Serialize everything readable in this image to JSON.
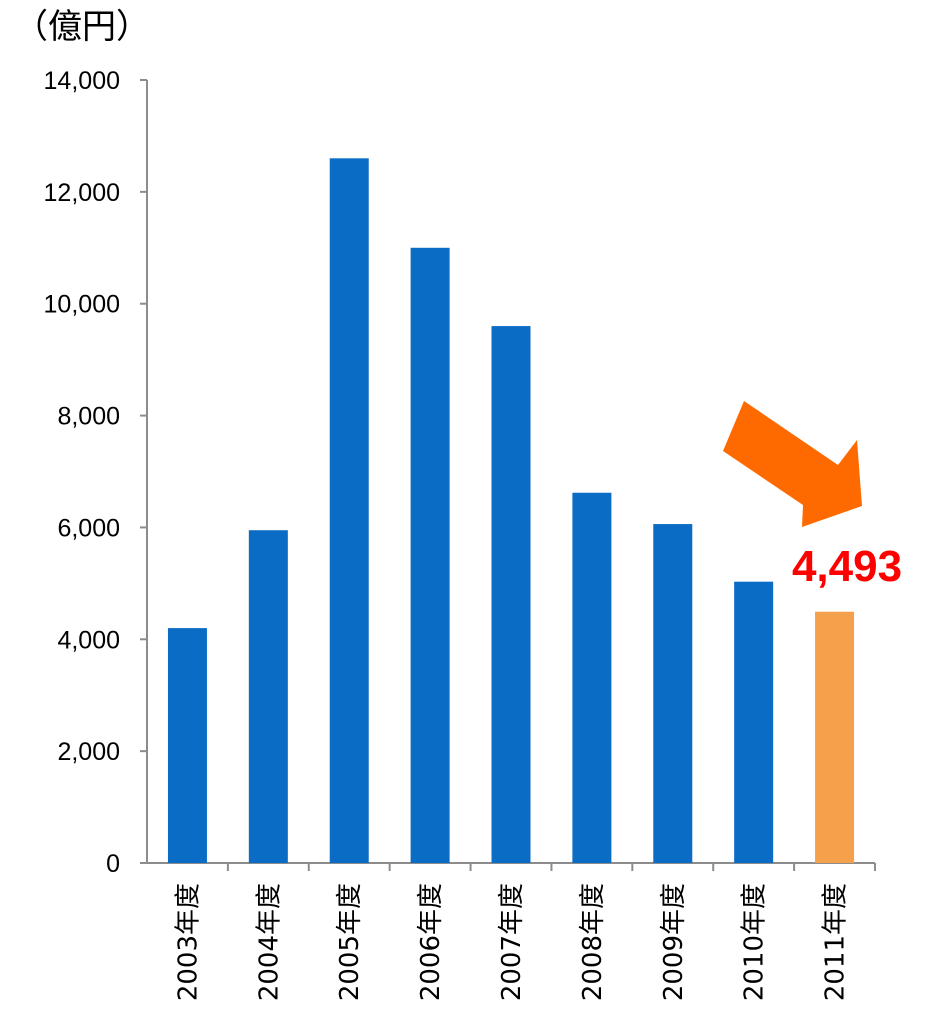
{
  "unit_label": "（億円）",
  "chart_data": {
    "type": "bar",
    "categories": [
      "2003年度",
      "2004年度",
      "2005年度",
      "2006年度",
      "2007年度",
      "2008年度",
      "2009年度",
      "2010年度",
      "2011年度"
    ],
    "values": [
      4200,
      5950,
      12600,
      11000,
      9600,
      6620,
      6060,
      5030,
      4493
    ],
    "ylim": [
      0,
      14000
    ],
    "yticks": [
      "0",
      "2,000",
      "4,000",
      "6,000",
      "8,000",
      "10,000",
      "12,000",
      "14,000"
    ],
    "grid": false,
    "bar_color": "#0a6cc4",
    "highlight_index": 8,
    "highlight_color": "#f5a04a",
    "callout": {
      "text": "4,493",
      "color": "#ff0000",
      "arrow_color": "#ff6a00",
      "arrow_direction": "down-right"
    }
  }
}
